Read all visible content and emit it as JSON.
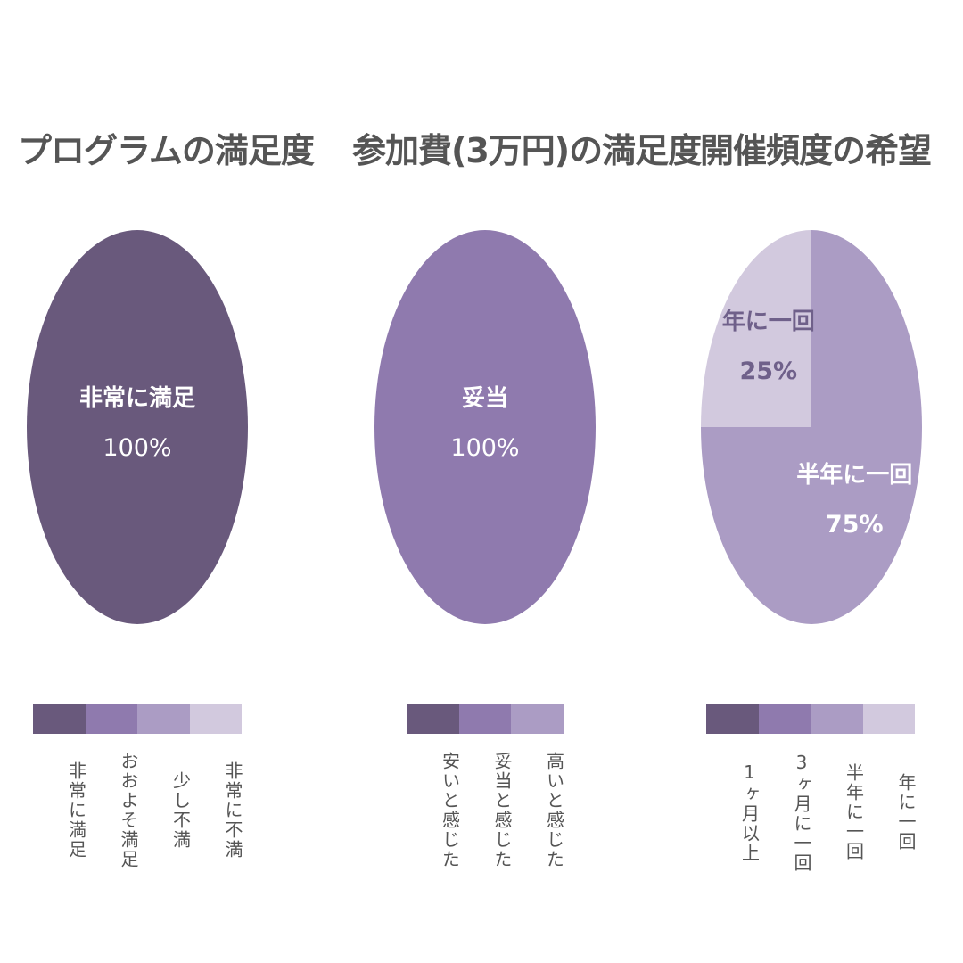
{
  "chart_data": [
    {
      "type": "pie",
      "title": "プログラムの満足度",
      "legend": [
        "非常に満足",
        "おおよそ満足",
        "少し不満",
        "非常に不満"
      ],
      "legend_colors": [
        "#69597c",
        "#8f7aae",
        "#ab9cc4",
        "#d2c9de"
      ],
      "slices": [
        {
          "label": "非常に満足",
          "value": 100,
          "value_label": "100%",
          "color": "#69597c"
        }
      ]
    },
    {
      "type": "pie",
      "title": "参加費(3万円)の満足度",
      "legend": [
        "安いと感じた",
        "妥当と感じた",
        "高いと感じた"
      ],
      "legend_colors": [
        "#69597c",
        "#8f7aae",
        "#ab9cc4"
      ],
      "slices": [
        {
          "label": "妥当",
          "value": 100,
          "value_label": "100%",
          "color": "#8f7aae"
        }
      ]
    },
    {
      "type": "pie",
      "title": "開催頻度の希望",
      "legend": [
        "1ヶ月以上",
        "3ヶ月に一回",
        "半年に一回",
        "年に一回"
      ],
      "legend_colors": [
        "#69597c",
        "#8f7aae",
        "#ab9cc4",
        "#d2c9de"
      ],
      "slices": [
        {
          "label": "半年に一回",
          "value": 75,
          "value_label": "75%",
          "color": "#ab9cc4"
        },
        {
          "label": "年に一回",
          "value": 25,
          "value_label": "25%",
          "color": "#d2c9de"
        }
      ]
    }
  ],
  "label_colors": {
    "on_dark": "#ffffff",
    "on_light": "#6f608a"
  }
}
